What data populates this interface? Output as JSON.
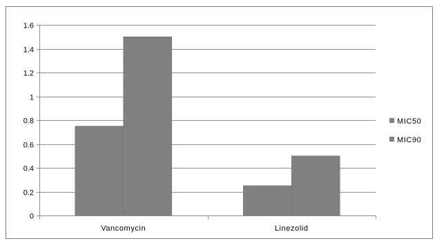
{
  "chart_data": {
    "type": "bar",
    "title": "",
    "xlabel": "",
    "ylabel": "",
    "categories": [
      "Vancomycin",
      "Linezolid"
    ],
    "series": [
      {
        "name": "MIC50",
        "values": [
          0.75,
          0.25
        ]
      },
      {
        "name": "MIC90",
        "values": [
          1.5,
          0.5
        ]
      }
    ],
    "ylim": [
      0,
      1.6
    ],
    "yticks": [
      0,
      0.2,
      0.4,
      0.6,
      0.8,
      1,
      1.2,
      1.4,
      1.6
    ],
    "ytick_labels": [
      "0",
      "0.2",
      "0.4",
      "0.6",
      "0.8",
      "1",
      "1.2",
      "1.4",
      "1.6"
    ],
    "grid": true,
    "legend_position": "right",
    "colors": {
      "bars": "#808080",
      "gridlines": "#8c8c8c",
      "axis": "#8c8c8c",
      "frame": "#7f7f7f"
    }
  }
}
